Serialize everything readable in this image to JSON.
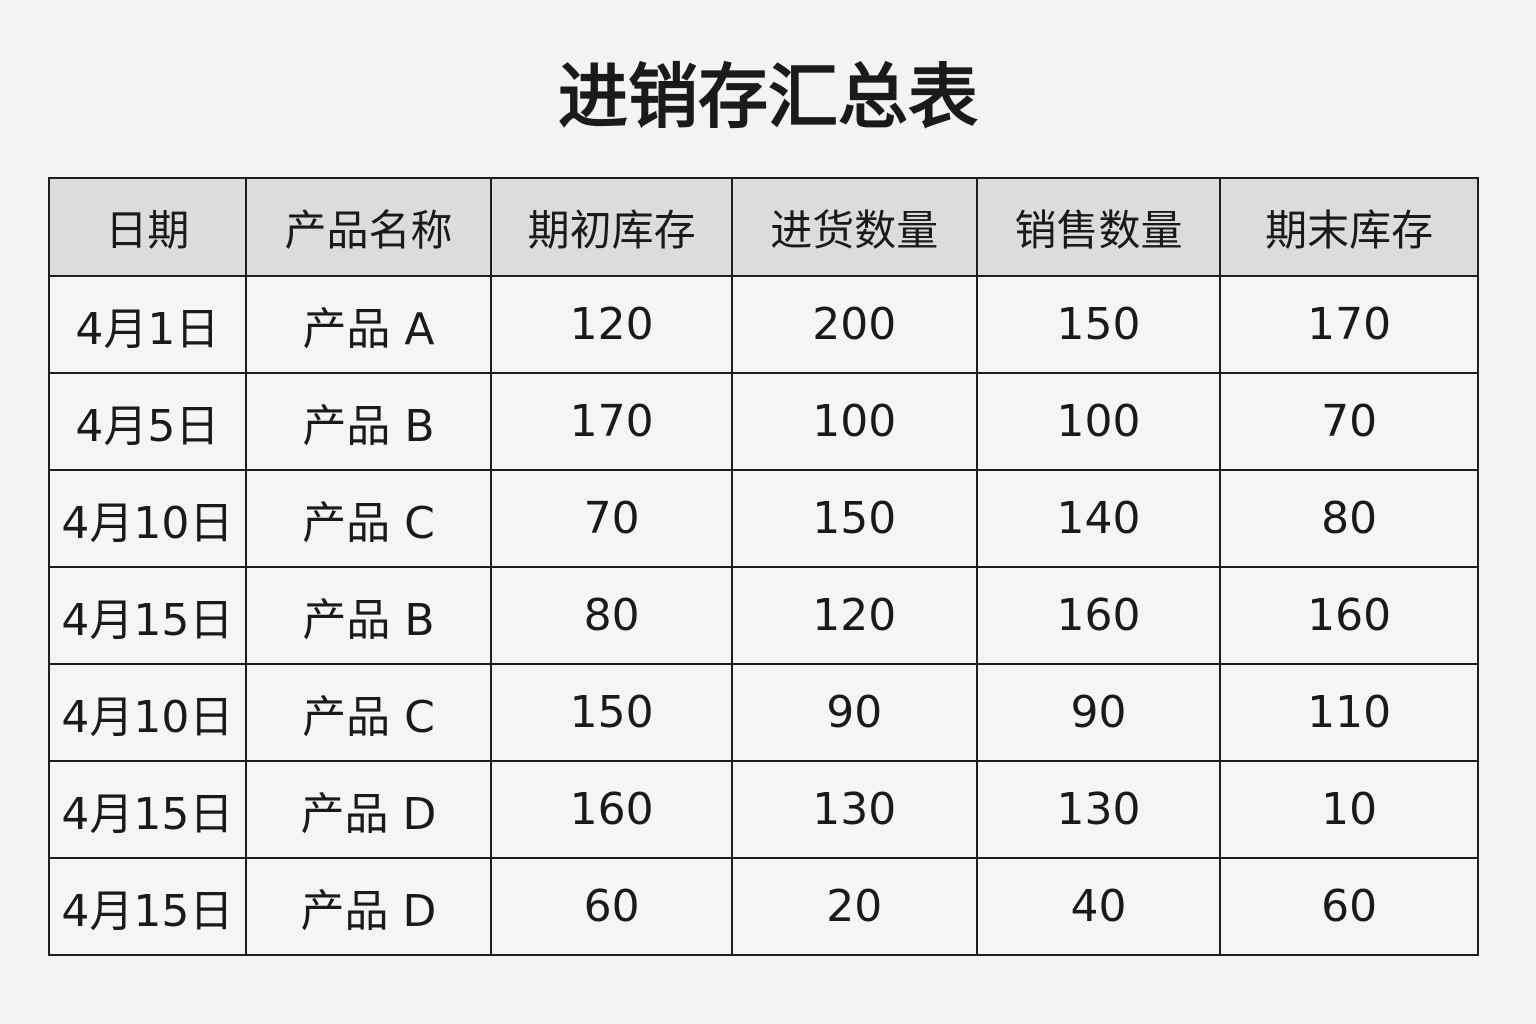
{
  "title": "进销存汇总表",
  "table": {
    "headers": [
      "日期",
      "产品名称",
      "期初库存",
      "进货数量",
      "销售数量",
      "期末库存"
    ],
    "rows": [
      [
        "4月1日",
        "产品 A",
        "120",
        "200",
        "150",
        "170"
      ],
      [
        "4月5日",
        "产品 B",
        "170",
        "100",
        "100",
        "70"
      ],
      [
        "4月10日",
        "产品 C",
        "70",
        "150",
        "140",
        "80"
      ],
      [
        "4月15日",
        "产品 B",
        "80",
        "120",
        "160",
        "160"
      ],
      [
        "4月10日",
        "产品 C",
        "150",
        "90",
        "90",
        "110"
      ],
      [
        "4月15日",
        "产品 D",
        "160",
        "130",
        "130",
        "10"
      ],
      [
        "4月15日",
        "产品 D",
        "60",
        "20",
        "40",
        "60"
      ]
    ]
  },
  "colors": {
    "header_bg": "#dcdcdc",
    "cell_bg": "#f5f5f5",
    "border": "#1e1e1e",
    "page_bg": "#f3f3f3"
  }
}
